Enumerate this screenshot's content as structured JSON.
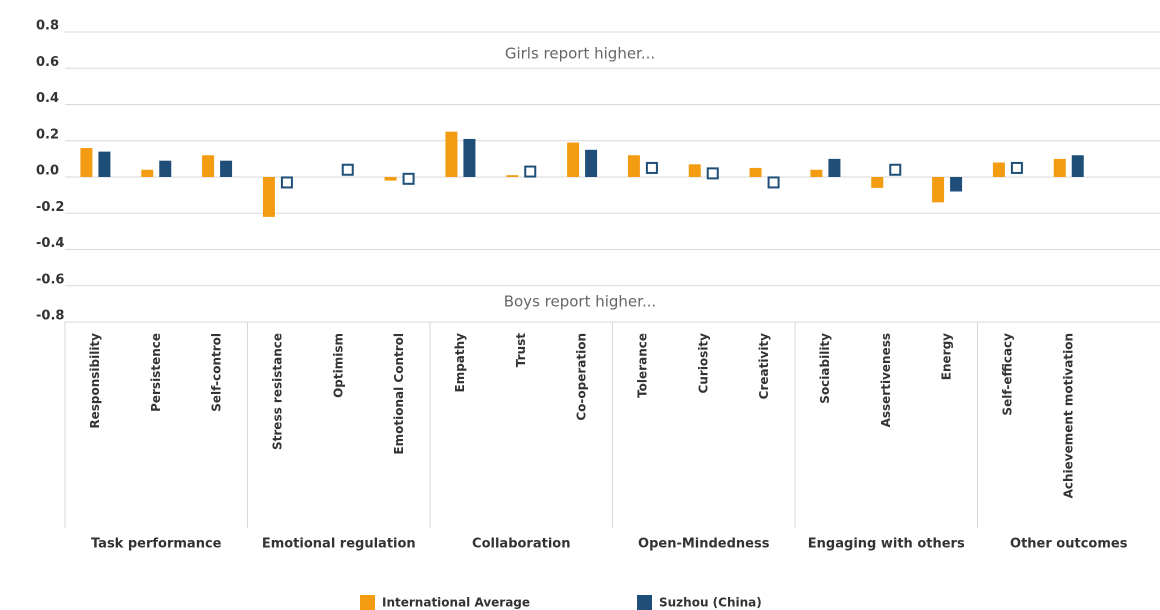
{
  "chart_data": {
    "type": "bar",
    "annotations": [
      "Girls report higher...",
      "Boys report higher..."
    ],
    "categories": [
      "Responsibility",
      "Persistence",
      "Self-control",
      "Stress resistance",
      "Optimism",
      "Emotional Control",
      "Empathy",
      "Trust",
      "Co-operation",
      "Tolerance",
      "Curiosity",
      "Creativity",
      "Sociability",
      "Assertiveness",
      "Energy",
      "Self-efficacy",
      "Achievement motivation"
    ],
    "groups": [
      "Task performance",
      "Emotional regulation",
      "Collaboration",
      "Open-Mindedness",
      "Engaging with others",
      "Other outcomes"
    ],
    "group_sizes_per_group": null,
    "series": [
      {
        "name": "International Average",
        "color": "#f39c12",
        "values": [
          0.16,
          0.04,
          0.12,
          -0.22,
          0,
          -0.02,
          0.25,
          0.01,
          0.19,
          0.12,
          0.07,
          0.05,
          0.04,
          -0.06,
          -0.14,
          0.08,
          0.1
        ]
      },
      {
        "name": "Suzhou (China)",
        "color": "#1f4e79",
        "values": [
          0.14,
          0.09,
          0.09,
          -0.03,
          0.04,
          -0.01,
          0.21,
          0.03,
          0.15,
          0.05,
          0.02,
          -0.03,
          0.1,
          0.04,
          -0.08,
          0.05,
          0.12
        ],
        "hollow": [
          false,
          false,
          false,
          true,
          true,
          true,
          false,
          true,
          false,
          true,
          true,
          true,
          false,
          true,
          false,
          true,
          false
        ]
      }
    ],
    "ylim": [
      -0.8,
      0.8
    ],
    "yticks": [
      {
        "value": -0.8,
        "label": "-0.8"
      },
      {
        "value": -0.6,
        "label": "-0.6"
      },
      {
        "value": -0.4,
        "label": "-0.4"
      },
      {
        "value": -0.2,
        "label": "-0.2"
      },
      {
        "value": 0,
        "label": "0.0"
      },
      {
        "value": 0.2,
        "label": "0.2"
      },
      {
        "value": 0.4,
        "label": "0.4"
      },
      {
        "value": 0.6,
        "label": "0.6"
      },
      {
        "value": 0.8,
        "label": "0.8"
      }
    ],
    "grid": true,
    "legend": "bottom"
  }
}
